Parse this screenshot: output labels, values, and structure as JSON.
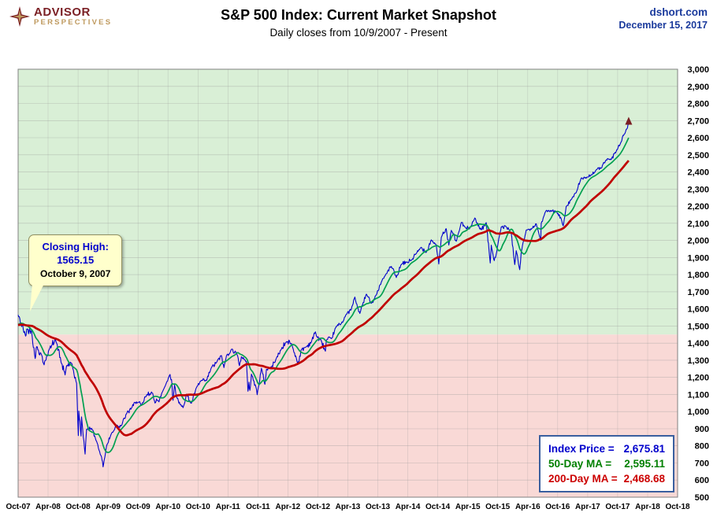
{
  "header": {
    "logo_line1": "ADVISOR",
    "logo_line2": "PERSPECTIVES",
    "title": "S&P 500 Index: Current Market Snapshot",
    "subtitle": "Daily closes from 10/9/2007 - Present",
    "site": "dshort.com",
    "date": "December 15, 2017"
  },
  "callout": {
    "line1": "Closing High:",
    "line2": "1565.15",
    "line3": "October 9, 2007"
  },
  "legend": {
    "border_color": "#3a5f9f",
    "items": [
      {
        "label": "Index Price = ",
        "value": "2,675.81",
        "color": "#0000cc"
      },
      {
        "label": "50-Day MA = ",
        "value": "2,595.11",
        "color": "#008000"
      },
      {
        "label": "200-Day MA = ",
        "value": "2,468.68",
        "color": "#cc0000"
      }
    ]
  },
  "chart_data": {
    "type": "line",
    "title": "S&P 500 Index: Current Market Snapshot",
    "subtitle": "Daily closes from 10/9/2007 - Present",
    "grid": true,
    "legend_position": "bottom-right",
    "x_axis": {
      "start": "Oct-2007",
      "domain_months": [
        0,
        132
      ],
      "tick_interval_months": 6,
      "tick_labels": [
        "Oct-07",
        "Apr-08",
        "Oct-08",
        "Apr-09",
        "Oct-09",
        "Apr-10",
        "Oct-10",
        "Apr-11",
        "Oct-11",
        "Apr-12",
        "Oct-12",
        "Apr-13",
        "Oct-13",
        "Apr-14",
        "Oct-14",
        "Apr-15",
        "Oct-15",
        "Apr-16",
        "Oct-16",
        "Apr-17",
        "Oct-17",
        "Apr-18",
        "Oct-18"
      ]
    },
    "y_axis": {
      "min": 500,
      "max": 3000,
      "tick_step": 100,
      "side": "right"
    },
    "regions": {
      "threshold_value": 1450,
      "above_color": "#d9efd6",
      "below_color": "#f9d9d6"
    },
    "annotations": [
      {
        "text": [
          "Closing High:",
          "1565.15",
          "October 9, 2007"
        ],
        "x_month": 0,
        "value": 1565.15
      }
    ],
    "series": [
      {
        "name": "Index Price",
        "color": "#0000cc",
        "current_value": 2675.81,
        "points": [
          [
            0,
            1565
          ],
          [
            1.5,
            1441
          ],
          [
            1.7,
            1481
          ],
          [
            2.7,
            1468
          ],
          [
            3.4,
            1310
          ],
          [
            3.7,
            1379
          ],
          [
            4.7,
            1331
          ],
          [
            5.2,
            1273
          ],
          [
            5.7,
            1323
          ],
          [
            6.7,
            1386
          ],
          [
            7.4,
            1426
          ],
          [
            7.7,
            1400
          ],
          [
            8.7,
            1280
          ],
          [
            9.4,
            1214
          ],
          [
            9.7,
            1267
          ],
          [
            10.7,
            1283
          ],
          [
            11.7,
            1166
          ],
          [
            12.05,
            860
          ],
          [
            12.15,
            1003
          ],
          [
            12.6,
            857
          ],
          [
            12.7,
            969
          ],
          [
            13.4,
            752
          ],
          [
            13.7,
            896
          ],
          [
            14.7,
            903
          ],
          [
            15.7,
            826
          ],
          [
            16.7,
            735
          ],
          [
            17.0,
            677
          ],
          [
            17.7,
            798
          ],
          [
            18.7,
            873
          ],
          [
            19.7,
            919
          ],
          [
            20.7,
            919
          ],
          [
            21.7,
            987
          ],
          [
            22.7,
            1021
          ],
          [
            23.7,
            1057
          ],
          [
            24.7,
            1036
          ],
          [
            25.7,
            1096
          ],
          [
            26.7,
            1115
          ],
          [
            27.4,
            1050
          ],
          [
            27.7,
            1074
          ],
          [
            28.2,
            1057
          ],
          [
            28.7,
            1104
          ],
          [
            29.7,
            1169
          ],
          [
            30.4,
            1217
          ],
          [
            30.7,
            1187
          ],
          [
            31.0,
            1066
          ],
          [
            31.3,
            1155
          ],
          [
            31.7,
            1089
          ],
          [
            32.4,
            1042
          ],
          [
            32.7,
            1031
          ],
          [
            33.0,
            1023
          ],
          [
            33.7,
            1102
          ],
          [
            34.3,
            1064
          ],
          [
            34.7,
            1049
          ],
          [
            35.7,
            1141
          ],
          [
            36.7,
            1183
          ],
          [
            37.4,
            1178
          ],
          [
            37.7,
            1181
          ],
          [
            38.7,
            1258
          ],
          [
            39.7,
            1286
          ],
          [
            40.7,
            1327
          ],
          [
            41.2,
            1257
          ],
          [
            41.7,
            1326
          ],
          [
            42.7,
            1364
          ],
          [
            43.7,
            1345
          ],
          [
            44.3,
            1268
          ],
          [
            44.7,
            1321
          ],
          [
            45.7,
            1292
          ],
          [
            46.0,
            1119
          ],
          [
            46.2,
            1172
          ],
          [
            46.4,
            1124
          ],
          [
            46.7,
            1219
          ],
          [
            47.7,
            1131
          ],
          [
            47.85,
            1099
          ],
          [
            48.7,
            1253
          ],
          [
            49.4,
            1159
          ],
          [
            49.7,
            1247
          ],
          [
            50.7,
            1258
          ],
          [
            51.7,
            1312
          ],
          [
            52.7,
            1366
          ],
          [
            53.7,
            1408
          ],
          [
            54.7,
            1398
          ],
          [
            55.7,
            1310
          ],
          [
            56.0,
            1278
          ],
          [
            56.7,
            1362
          ],
          [
            57.7,
            1379
          ],
          [
            58.7,
            1407
          ],
          [
            59.5,
            1466
          ],
          [
            59.7,
            1441
          ],
          [
            60.7,
            1412
          ],
          [
            61.5,
            1353
          ],
          [
            61.7,
            1416
          ],
          [
            62.7,
            1426
          ],
          [
            63.7,
            1498
          ],
          [
            64.7,
            1515
          ],
          [
            65.7,
            1569
          ],
          [
            66.7,
            1598
          ],
          [
            67.4,
            1669
          ],
          [
            67.7,
            1631
          ],
          [
            68.4,
            1573
          ],
          [
            68.7,
            1606
          ],
          [
            69.7,
            1686
          ],
          [
            70.7,
            1633
          ],
          [
            71.7,
            1682
          ],
          [
            72.7,
            1757
          ],
          [
            73.7,
            1806
          ],
          [
            74.7,
            1848
          ],
          [
            75.7,
            1783
          ],
          [
            76.7,
            1859
          ],
          [
            77.7,
            1872
          ],
          [
            78.7,
            1884
          ],
          [
            79.7,
            1924
          ],
          [
            80.7,
            1960
          ],
          [
            81.7,
            1931
          ],
          [
            82.7,
            2003
          ],
          [
            83.7,
            1972
          ],
          [
            84.2,
            1862
          ],
          [
            84.7,
            2018
          ],
          [
            85.7,
            2068
          ],
          [
            86.2,
            1973
          ],
          [
            86.7,
            2059
          ],
          [
            87.7,
            1995
          ],
          [
            88.7,
            2105
          ],
          [
            89.7,
            2068
          ],
          [
            90.7,
            2086
          ],
          [
            91.4,
            2131
          ],
          [
            91.7,
            2107
          ],
          [
            92.7,
            2063
          ],
          [
            93.7,
            2104
          ],
          [
            94.5,
            1868
          ],
          [
            94.7,
            1972
          ],
          [
            95.3,
            1882
          ],
          [
            95.7,
            1920
          ],
          [
            96.7,
            2079
          ],
          [
            97.7,
            2080
          ],
          [
            98.7,
            2044
          ],
          [
            99.4,
            1859
          ],
          [
            99.7,
            1940
          ],
          [
            100.4,
            1829
          ],
          [
            100.7,
            1932
          ],
          [
            101.7,
            2060
          ],
          [
            102.7,
            2065
          ],
          [
            103.7,
            2097
          ],
          [
            104.6,
            2001
          ],
          [
            104.7,
            2099
          ],
          [
            105.7,
            2174
          ],
          [
            106.7,
            2171
          ],
          [
            107.7,
            2168
          ],
          [
            108.7,
            2126
          ],
          [
            109.1,
            2085
          ],
          [
            109.7,
            2199
          ],
          [
            110.7,
            2239
          ],
          [
            111.7,
            2279
          ],
          [
            112.7,
            2364
          ],
          [
            113.7,
            2363
          ],
          [
            114.7,
            2384
          ],
          [
            115.7,
            2412
          ],
          [
            116.7,
            2423
          ],
          [
            117.7,
            2470
          ],
          [
            118.7,
            2472
          ],
          [
            119.7,
            2519
          ],
          [
            120.7,
            2575
          ],
          [
            121.7,
            2648
          ],
          [
            122.2,
            2676
          ]
        ]
      },
      {
        "name": "50-Day MA",
        "color": "#00a050",
        "current_value": 2595.11,
        "derived": "50-day moving average of Index Price"
      },
      {
        "name": "200-Day MA",
        "color": "#c00000",
        "current_value": 2468.68,
        "derived": "200-day moving average of Index Price"
      }
    ]
  }
}
